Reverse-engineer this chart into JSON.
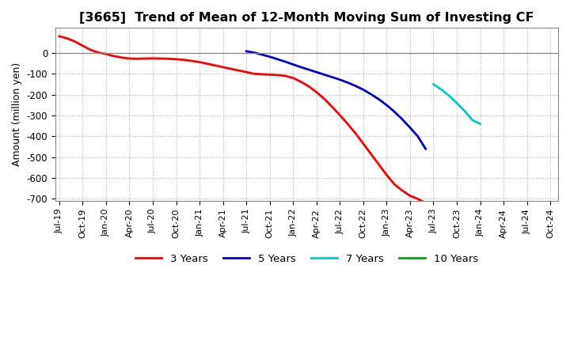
{
  "title": "[3665]  Trend of Mean of 12-Month Moving Sum of Investing CF",
  "ylabel": "Amount (million yen)",
  "ylim": [
    -700,
    100
  ],
  "yticks": [
    0,
    -100,
    -200,
    -300,
    -400,
    -500,
    -600,
    -700
  ],
  "background_color": "#ffffff",
  "grid_color": "#aaaaaa",
  "series": [
    {
      "label": "3 Years",
      "color": "#ff0000",
      "start_month": 0,
      "data": [
        80,
        70,
        55,
        35,
        15,
        2,
        -5,
        -15,
        -22,
        -27,
        -28,
        -27,
        -26,
        -27,
        -28,
        -30,
        -33,
        -38,
        -44,
        -52,
        -60,
        -68,
        -76,
        -84,
        -92,
        -100,
        -102,
        -104,
        -106,
        -110,
        -120,
        -138,
        -160,
        -188,
        -220,
        -258,
        -298,
        -340,
        -385,
        -435,
        -485,
        -535,
        -585,
        -630,
        -660,
        -685,
        -700,
        -720
      ]
    },
    {
      "label": "5 Years",
      "color": "#0000cc",
      "start_month": 24,
      "data": [
        8,
        2,
        -8,
        -18,
        -30,
        -42,
        -55,
        -68,
        -80,
        -92,
        -104,
        -116,
        -128,
        -142,
        -158,
        -176,
        -198,
        -222,
        -250,
        -282,
        -318,
        -358,
        -400,
        -460
      ]
    },
    {
      "label": "7 Years",
      "color": "#00cccc",
      "start_month": 48,
      "data": [
        -150,
        -175,
        -205,
        -240,
        -278,
        -322,
        -340
      ]
    },
    {
      "label": "10 Years",
      "color": "#00aa00",
      "start_month": 56,
      "data": []
    }
  ],
  "xtick_labels": [
    "Jul-19",
    "Oct-19",
    "Jan-20",
    "Apr-20",
    "Jul-20",
    "Oct-20",
    "Jan-21",
    "Apr-21",
    "Jul-21",
    "Oct-21",
    "Jan-22",
    "Apr-22",
    "Jul-22",
    "Oct-22",
    "Jan-23",
    "Apr-23",
    "Jul-23",
    "Oct-23",
    "Jan-24",
    "Apr-24",
    "Jul-24",
    "Oct-24"
  ],
  "xtick_positions": [
    0,
    3,
    6,
    9,
    12,
    15,
    18,
    21,
    24,
    27,
    30,
    33,
    36,
    39,
    42,
    45,
    48,
    51,
    54,
    57,
    60,
    63
  ],
  "total_points": 66
}
